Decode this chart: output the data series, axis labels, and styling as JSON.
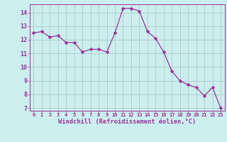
{
  "x": [
    0,
    1,
    2,
    3,
    4,
    5,
    6,
    7,
    8,
    9,
    10,
    11,
    12,
    13,
    14,
    15,
    16,
    17,
    18,
    19,
    20,
    21,
    22,
    23
  ],
  "y": [
    12.5,
    12.6,
    12.2,
    12.3,
    11.8,
    11.8,
    11.1,
    11.3,
    11.3,
    11.1,
    12.5,
    14.3,
    14.3,
    14.1,
    12.6,
    12.1,
    11.1,
    9.7,
    9.0,
    8.7,
    8.5,
    7.9,
    8.5,
    7.0
  ],
  "line_color": "#993399",
  "marker_color": "#993399",
  "bg_color": "#cceeee",
  "grid_color": "#aacccc",
  "axis_color": "#993399",
  "tick_color": "#993399",
  "xlabel": "Windchill (Refroidissement éolien,°C)",
  "ylim": [
    6.8,
    14.6
  ],
  "yticks": [
    7,
    8,
    9,
    10,
    11,
    12,
    13,
    14
  ],
  "xlim": [
    -0.5,
    23.5
  ],
  "marker_size": 2.5,
  "linewidth": 0.9,
  "xtick_fontsize": 5.0,
  "ytick_fontsize": 6.0,
  "xlabel_fontsize": 6.2
}
